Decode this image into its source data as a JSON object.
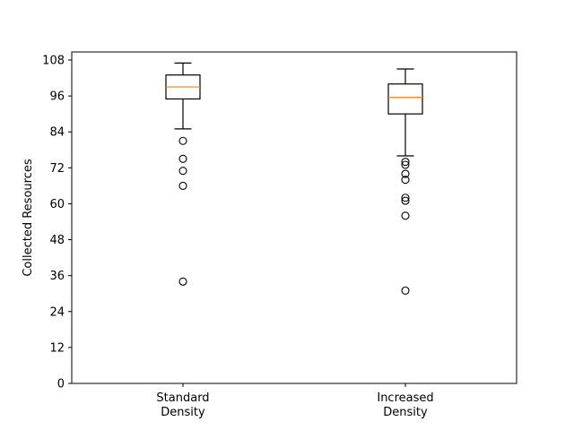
{
  "chart_data": {
    "type": "box",
    "title": "",
    "xlabel": "",
    "ylabel": "Collected Resources",
    "ylim": [
      0,
      108
    ],
    "yticks": [
      0,
      12,
      24,
      36,
      48,
      60,
      72,
      84,
      96,
      108
    ],
    "grid": false,
    "categories": [
      "Standard\nDensity",
      "Increased\nDensity"
    ],
    "boxes": [
      {
        "category": "Standard\nDensity",
        "whisker_low": 85,
        "q1": 95,
        "median": 99,
        "q3": 103,
        "whisker_high": 107,
        "outliers": [
          81,
          75,
          71,
          66,
          34
        ]
      },
      {
        "category": "Increased\nDensity",
        "whisker_low": 76,
        "q1": 90,
        "median": 95.5,
        "q3": 100,
        "whisker_high": 105,
        "outliers": [
          74,
          73,
          70,
          68,
          62,
          61,
          56,
          31
        ]
      }
    ],
    "colors": {
      "box": "#000000",
      "median": "#ff7f0e",
      "outlier": "#000000"
    }
  }
}
